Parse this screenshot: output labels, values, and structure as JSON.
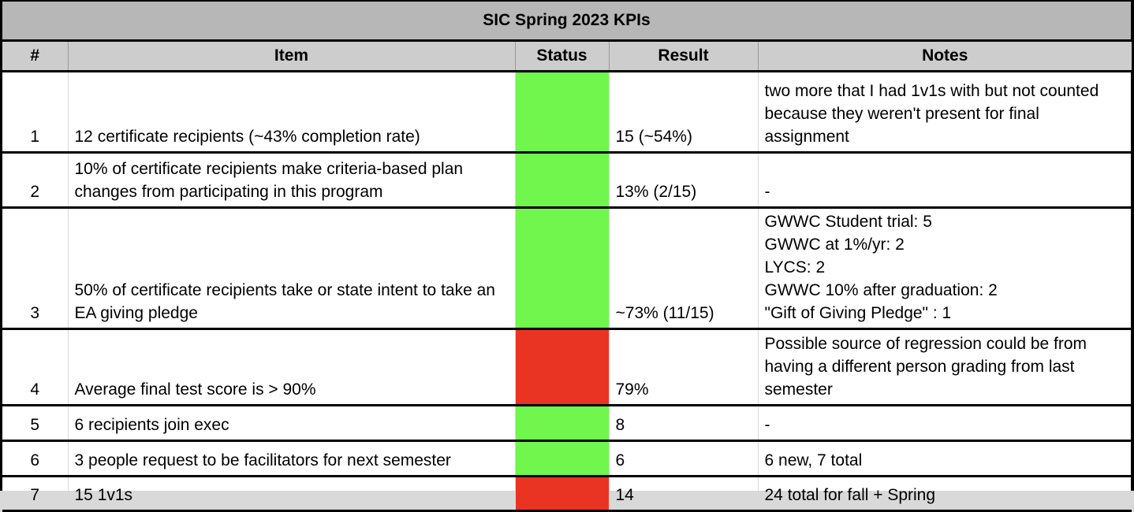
{
  "title": "SIC Spring 2023 KPIs",
  "columns": {
    "num": "#",
    "item": "Item",
    "status": "Status",
    "result": "Result",
    "notes": "Notes"
  },
  "colors": {
    "status_green": "#70f64d",
    "status_red": "#ea3423",
    "title_bg": "#b7b7b7",
    "header_bg": "#cdcdcd"
  },
  "rows": [
    {
      "num": "1",
      "item": "12 certificate recipients (~43% completion rate)",
      "status": "green",
      "status_color": "#70f64d",
      "result": "15 (~54%)",
      "notes": "two more that I had 1v1s with but not counted because they weren't present for final assignment"
    },
    {
      "num": "2",
      "item": "10% of certificate recipients make criteria-based plan changes from participating in this program",
      "status": "green",
      "status_color": "#70f64d",
      "result": "13% (2/15)",
      "notes": "-"
    },
    {
      "num": "3",
      "item": "50% of certificate recipients take or state intent to take an EA giving pledge",
      "status": "green",
      "status_color": "#70f64d",
      "result": "~73% (11/15)",
      "notes": "GWWC Student trial: 5\nGWWC at 1%/yr: 2\nLYCS: 2\nGWWC 10% after graduation: 2\n\"Gift of Giving Pledge\" : 1"
    },
    {
      "num": "4",
      "item": "Average final test score is > 90%",
      "status": "red",
      "status_color": "#ea3423",
      "result": "79%",
      "notes": "Possible source of regression could be from having a different person grading from last semester"
    },
    {
      "num": "5",
      "item": "6 recipients join exec",
      "status": "green",
      "status_color": "#70f64d",
      "result": "8",
      "notes": "-"
    },
    {
      "num": "6",
      "item": "3 people request to be facilitators for next semester",
      "status": "green",
      "status_color": "#70f64d",
      "result": "6",
      "notes": "6 new, 7 total"
    },
    {
      "num": "7",
      "item": "15 1v1s",
      "status": "red",
      "status_color": "#ea3423",
      "result": "14",
      "notes": "24 total for fall + Spring"
    }
  ]
}
